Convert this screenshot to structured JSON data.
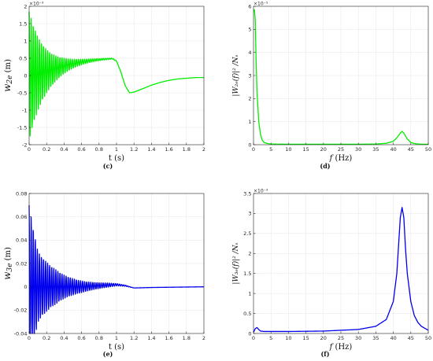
{
  "chart_data": [
    {
      "panel": "(c)",
      "type": "line",
      "color": "#00ee00",
      "xlabel": "t (s)",
      "ylabel_tex": "w_{2e} (m)",
      "ylabel_main": "w",
      "ylabel_sub": "2e",
      "ylabel_unit": "(m)",
      "exponent": "×10⁻³",
      "xlim": [
        0,
        2
      ],
      "ylim": [
        -2,
        2
      ],
      "xticks": [
        0,
        0.2,
        0.4,
        0.6,
        0.8,
        1,
        1.2,
        1.4,
        1.6,
        1.8,
        2
      ],
      "xtick_labels": [
        "0",
        "0.2",
        "0.4",
        "0.6",
        "0.8",
        "1",
        "1.2",
        "1.4",
        "1.6",
        "1.8",
        "2"
      ],
      "yticks": [
        -2,
        -1.5,
        -1,
        -0.5,
        0,
        0.5,
        1,
        1.5,
        2
      ],
      "ytick_labels": [
        "-2",
        "-1.5",
        "-1",
        "-0.5",
        "0",
        "0.5",
        "1",
        "1.5",
        "2"
      ],
      "grid": true,
      "series": [
        {
          "x": [
            0,
            0.1,
            0.2,
            0.3,
            0.4,
            0.5,
            0.6,
            0.7,
            0.8,
            0.9,
            0.95,
            1.0,
            1.05,
            1.1,
            1.15,
            1.2,
            1.3,
            1.4,
            1.5,
            1.6,
            1.7,
            1.8,
            1.9,
            2.0
          ],
          "y": [
            0,
            0.05,
            0.12,
            0.2,
            0.28,
            0.34,
            0.39,
            0.43,
            0.46,
            0.48,
            0.49,
            0.42,
            0.1,
            -0.3,
            -0.5,
            -0.48,
            -0.38,
            -0.28,
            -0.2,
            -0.14,
            -0.1,
            -0.08,
            -0.06,
            -0.06
          ],
          "envelope": [
            1.85,
            1.05,
            0.62,
            0.37,
            0.22,
            0.13,
            0.08,
            0.05,
            0.03,
            0.02,
            0.015,
            0.01,
            0,
            0,
            0,
            0,
            0,
            0,
            0,
            0,
            0,
            0,
            0,
            0
          ]
        }
      ]
    },
    {
      "panel": "(d)",
      "type": "line",
      "color": "#00ee00",
      "xlabel": "f (Hz)",
      "xlabel_var": "f",
      "xlabel_unit": "(Hz)",
      "ylabel_tex": "|W_{2e}(f)|^2 / N_s",
      "ylabel_text": "|W₂ₑ(f)|² /Nₛ",
      "exponent": "×10⁻⁵",
      "xlim": [
        0,
        50
      ],
      "ylim": [
        0,
        6
      ],
      "xticks": [
        0,
        5,
        10,
        15,
        20,
        25,
        30,
        35,
        40,
        45,
        50
      ],
      "xtick_labels": [
        "0",
        "5",
        "10",
        "15",
        "20",
        "25",
        "30",
        "35",
        "40",
        "45",
        "50"
      ],
      "yticks": [
        0,
        1,
        2,
        3,
        4,
        5,
        6
      ],
      "ytick_labels": [
        "0",
        "1",
        "2",
        "3",
        "4",
        "5",
        "6"
      ],
      "grid": true,
      "series": [
        {
          "x": [
            0,
            0.25,
            0.5,
            0.75,
            1,
            1.5,
            2,
            2.5,
            3,
            4,
            5,
            10,
            20,
            30,
            35,
            38,
            40,
            41,
            42,
            42.5,
            43,
            44,
            45,
            46,
            48,
            50
          ],
          "y": [
            5.8,
            5.85,
            5.4,
            3.6,
            2.3,
            1.0,
            0.45,
            0.2,
            0.1,
            0.05,
            0.03,
            0.02,
            0.02,
            0.02,
            0.03,
            0.06,
            0.15,
            0.3,
            0.5,
            0.58,
            0.5,
            0.25,
            0.1,
            0.05,
            0.02,
            0.02
          ]
        }
      ]
    },
    {
      "panel": "(e)",
      "type": "line",
      "color": "#0000ee",
      "xlabel": "t (s)",
      "ylabel_tex": "w_{3e} (m)",
      "ylabel_main": "w",
      "ylabel_sub": "3e",
      "ylabel_unit": "(m)",
      "exponent": "",
      "xlim": [
        0,
        2
      ],
      "ylim": [
        -0.04,
        0.08
      ],
      "xticks": [
        0,
        0.2,
        0.4,
        0.6,
        0.8,
        1,
        1.2,
        1.4,
        1.6,
        1.8,
        2
      ],
      "xtick_labels": [
        "0",
        "0.2",
        "0.4",
        "0.6",
        "0.8",
        "1",
        "1.2",
        "1.4",
        "1.6",
        "1.8",
        "2"
      ],
      "yticks": [
        -0.04,
        -0.02,
        0,
        0.02,
        0.04,
        0.06,
        0.08
      ],
      "ytick_labels": [
        "-0.04",
        "-0.02",
        "0",
        "0.02",
        "0.04",
        "0.06",
        "0.08"
      ],
      "grid": true,
      "series": [
        {
          "x": [
            0,
            0.1,
            0.2,
            0.3,
            0.4,
            0.5,
            0.6,
            0.7,
            0.8,
            0.9,
            1.0,
            1.1,
            1.2,
            1.4,
            1.6,
            1.8,
            2.0
          ],
          "y": [
            0,
            0,
            0,
            0,
            0,
            0,
            0,
            0.0005,
            0.001,
            0.0015,
            0.0018,
            0.001,
            -0.001,
            -0.0006,
            -0.0004,
            -0.0002,
            0
          ],
          "envelope": [
            0.07,
            0.03,
            0.021,
            0.015,
            0.01,
            0.007,
            0.005,
            0.0035,
            0.0025,
            0.0018,
            0.001,
            0.0005,
            0,
            0,
            0,
            0,
            0
          ]
        }
      ]
    },
    {
      "panel": "(f)",
      "type": "line",
      "color": "#0000ee",
      "xlabel": "f (Hz)",
      "xlabel_var": "f",
      "xlabel_unit": "(Hz)",
      "ylabel_tex": "|W_{3e}(f)|^2 / N_s",
      "ylabel_text": "|W₃ₑ(f)|² /Nₛ",
      "exponent": "×10⁻³",
      "xlim": [
        0,
        50
      ],
      "ylim": [
        0,
        3.5
      ],
      "xticks": [
        0,
        5,
        10,
        15,
        20,
        25,
        30,
        35,
        40,
        45,
        50
      ],
      "xtick_labels": [
        "0",
        "5",
        "10",
        "15",
        "20",
        "25",
        "30",
        "35",
        "40",
        "45",
        "50"
      ],
      "yticks": [
        0,
        0.5,
        1,
        1.5,
        2,
        2.5,
        3,
        3.5
      ],
      "ytick_labels": [
        "0",
        "0.5",
        "1",
        "1.5",
        "2",
        "2.5",
        "3",
        "3.5"
      ],
      "grid": true,
      "series": [
        {
          "x": [
            0,
            0.5,
            1,
            1.5,
            2,
            3,
            5,
            10,
            20,
            30,
            35,
            38,
            40,
            41,
            41.5,
            42,
            42.5,
            43,
            43.5,
            44,
            45,
            46,
            47,
            48,
            50
          ],
          "y": [
            0.03,
            0.12,
            0.15,
            0.1,
            0.06,
            0.05,
            0.05,
            0.05,
            0.06,
            0.1,
            0.18,
            0.35,
            0.8,
            1.5,
            2.2,
            2.9,
            3.15,
            2.9,
            2.1,
            1.5,
            0.8,
            0.45,
            0.28,
            0.18,
            0.08
          ]
        }
      ]
    }
  ]
}
